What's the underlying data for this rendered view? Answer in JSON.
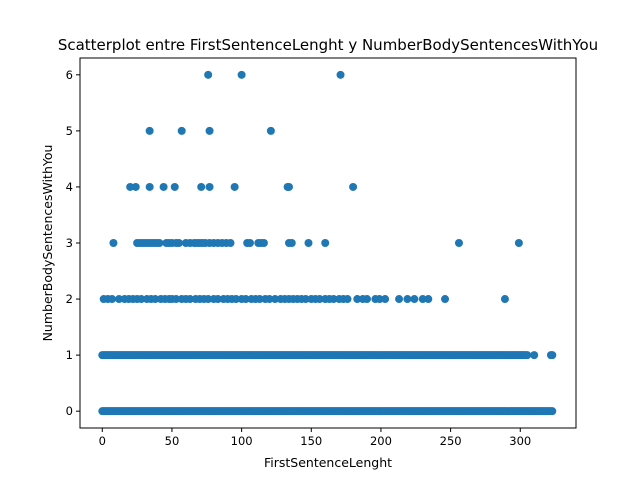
{
  "chart_data": {
    "type": "scatter",
    "title": "Scatterplot entre FirstSentenceLenght y NumberBodySentencesWithYou",
    "xlabel": "FirstSentenceLenght",
    "ylabel": "NumberBodySentencesWithYou",
    "xlim": [
      -16,
      340
    ],
    "ylim": [
      -0.3,
      6.3
    ],
    "xticks": [
      "0",
      "50",
      "100",
      "150",
      "200",
      "250",
      "300"
    ],
    "yticks": [
      "0",
      "1",
      "2",
      "3",
      "4",
      "5",
      "6"
    ],
    "grid": false,
    "marker_color": "#1f77b4",
    "series": [
      {
        "x_ranges": [
          {
            "y": 0,
            "from": 0,
            "to": 323,
            "step": 1
          },
          {
            "y": 1,
            "from": 0,
            "to": 305,
            "step": 1
          }
        ],
        "x": [
          310,
          322,
          323,
          1,
          4,
          7,
          12,
          16,
          19,
          22,
          25,
          28,
          32,
          35,
          38,
          42,
          45,
          48,
          50,
          53,
          57,
          60,
          63,
          67,
          70,
          73,
          76,
          80,
          83,
          87,
          90,
          93,
          96,
          100,
          103,
          107,
          110,
          113,
          117,
          120,
          124,
          128,
          131,
          134,
          137,
          140,
          143,
          146,
          150,
          153,
          156,
          160,
          163,
          166,
          170,
          173,
          176,
          183,
          187,
          190,
          196,
          199,
          203,
          213,
          219,
          224,
          230,
          234,
          246,
          289,
          8,
          25,
          27,
          29,
          31,
          33,
          35,
          37,
          39,
          41,
          46,
          48,
          50,
          53,
          55,
          60,
          63,
          66,
          68,
          70,
          72,
          74,
          77,
          80,
          83,
          86,
          89,
          92,
          104,
          106,
          112,
          114,
          116,
          134,
          136,
          148,
          160,
          256,
          299,
          20,
          24,
          34,
          44,
          52,
          71,
          77,
          95,
          133,
          134,
          180,
          34,
          57,
          77,
          121,
          76,
          100,
          171
        ],
        "y": [
          1,
          1,
          1,
          2,
          2,
          2,
          2,
          2,
          2,
          2,
          2,
          2,
          2,
          2,
          2,
          2,
          2,
          2,
          2,
          2,
          2,
          2,
          2,
          2,
          2,
          2,
          2,
          2,
          2,
          2,
          2,
          2,
          2,
          2,
          2,
          2,
          2,
          2,
          2,
          2,
          2,
          2,
          2,
          2,
          2,
          2,
          2,
          2,
          2,
          2,
          2,
          2,
          2,
          2,
          2,
          2,
          2,
          2,
          2,
          2,
          2,
          2,
          2,
          2,
          2,
          2,
          2,
          2,
          2,
          2,
          3,
          3,
          3,
          3,
          3,
          3,
          3,
          3,
          3,
          3,
          3,
          3,
          3,
          3,
          3,
          3,
          3,
          3,
          3,
          3,
          3,
          3,
          3,
          3,
          3,
          3,
          3,
          3,
          3,
          3,
          3,
          3,
          3,
          3,
          3,
          3,
          3,
          3,
          3,
          4,
          4,
          4,
          4,
          4,
          4,
          4,
          4,
          4,
          4,
          4,
          5,
          5,
          5,
          5,
          6,
          6,
          6
        ]
      }
    ]
  }
}
